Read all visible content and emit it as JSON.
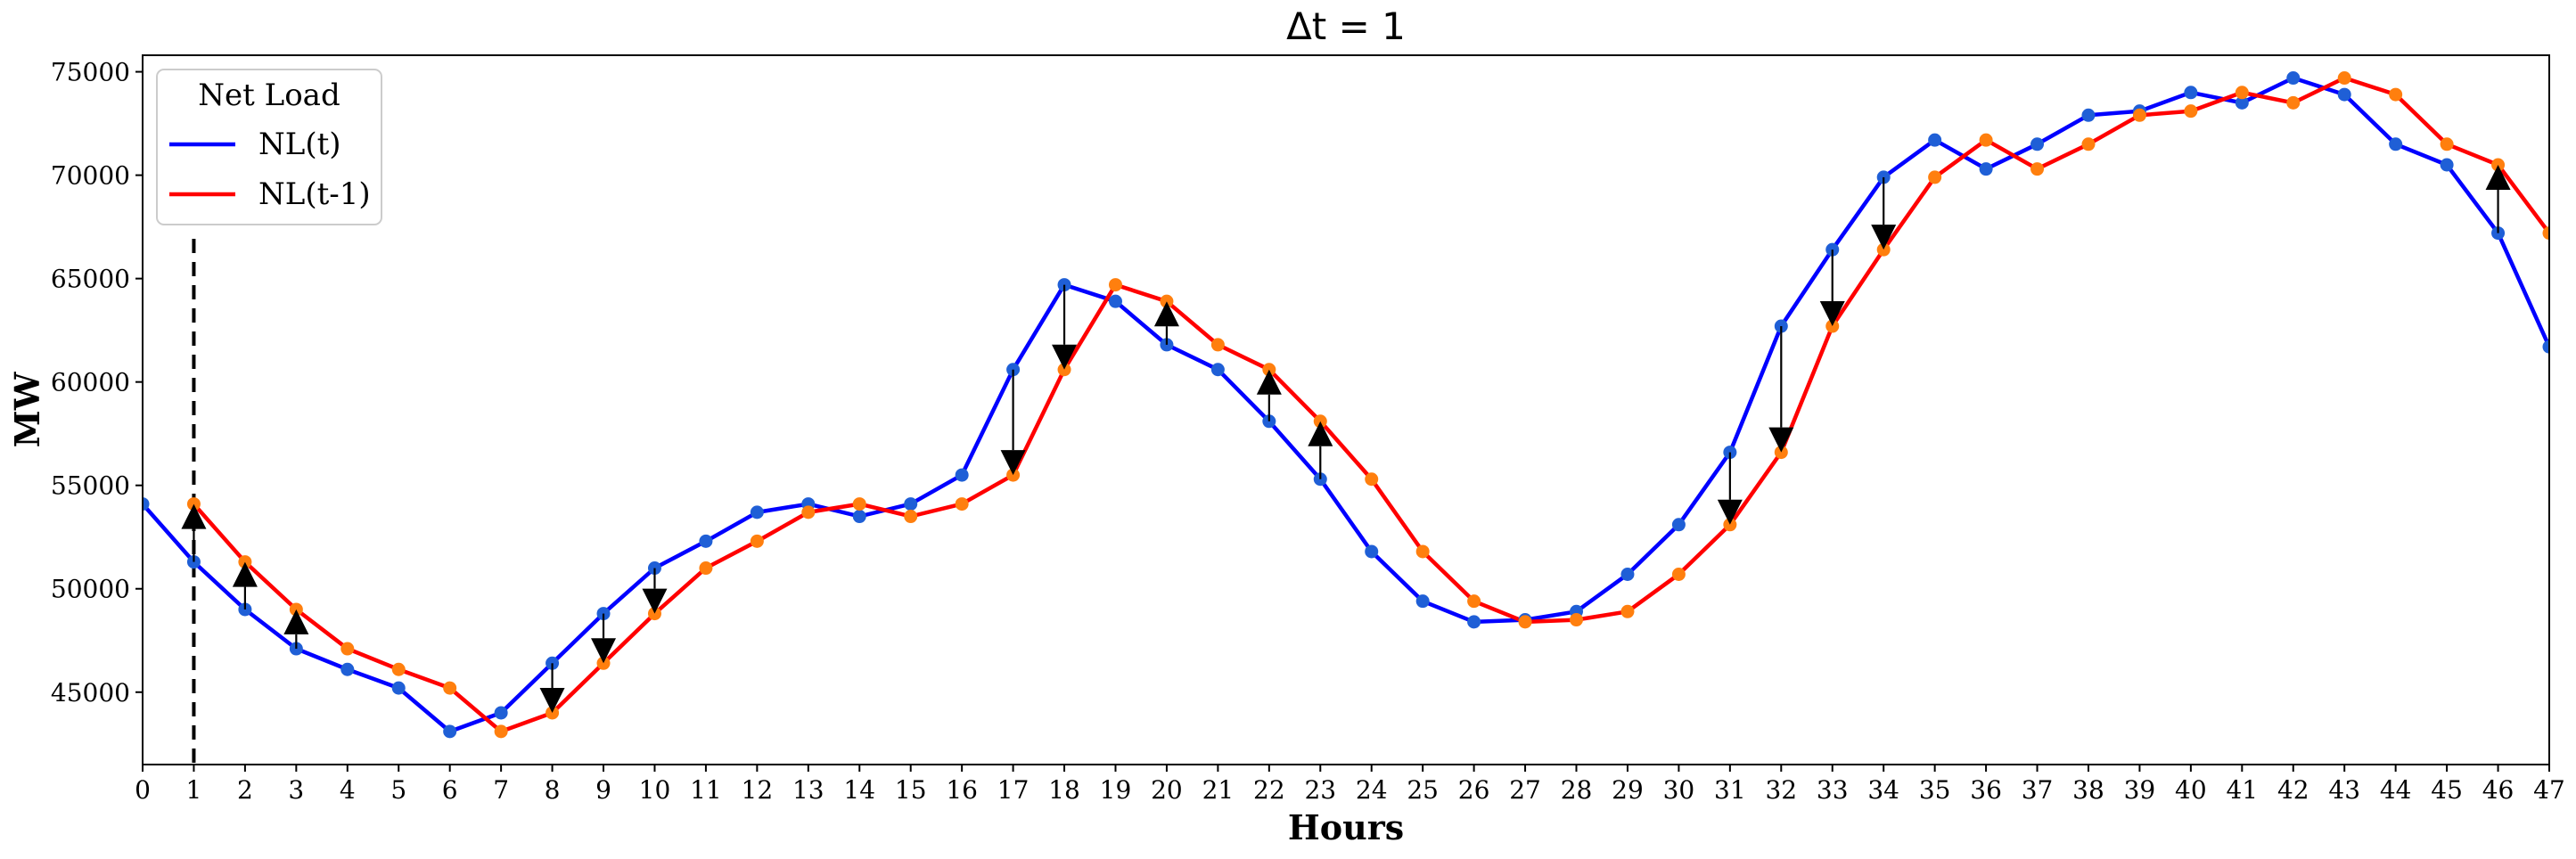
{
  "chart_data": {
    "type": "line",
    "title": "Δt = 1",
    "xlabel": "Hours",
    "ylabel": "MW",
    "xlim": [
      0,
      47
    ],
    "ylim": [
      41500,
      75800
    ],
    "x_ticks": [
      0,
      1,
      2,
      3,
      4,
      5,
      6,
      7,
      8,
      9,
      10,
      11,
      12,
      13,
      14,
      15,
      16,
      17,
      18,
      19,
      20,
      21,
      22,
      23,
      24,
      25,
      26,
      27,
      28,
      29,
      30,
      31,
      32,
      33,
      34,
      35,
      36,
      37,
      38,
      39,
      40,
      41,
      42,
      43,
      44,
      45,
      46,
      47
    ],
    "y_ticks": [
      45000,
      50000,
      55000,
      60000,
      65000,
      70000,
      75000
    ],
    "grid": false,
    "legend": {
      "title": "Net Load",
      "position": "top-left"
    },
    "series": [
      {
        "name": "NL(t)",
        "color": "#0000ff",
        "marker_color": "#1f5fd6",
        "x": [
          0,
          1,
          2,
          3,
          4,
          5,
          6,
          7,
          8,
          9,
          10,
          11,
          12,
          13,
          14,
          15,
          16,
          17,
          18,
          19,
          20,
          21,
          22,
          23,
          24,
          25,
          26,
          27,
          28,
          29,
          30,
          31,
          32,
          33,
          34,
          35,
          36,
          37,
          38,
          39,
          40,
          41,
          42,
          43,
          44,
          45,
          46,
          47
        ],
        "values": [
          54100,
          51300,
          49000,
          47100,
          46100,
          45200,
          43100,
          44000,
          46400,
          48800,
          51000,
          52300,
          53700,
          54100,
          53500,
          54100,
          55500,
          60600,
          64700,
          63900,
          61800,
          60600,
          58100,
          55300,
          51800,
          49400,
          48400,
          48500,
          48900,
          50700,
          53100,
          56600,
          62700,
          66400,
          69900,
          71700,
          70300,
          71500,
          72900,
          73100,
          74000,
          73500,
          74700,
          73900,
          71500,
          70500,
          67200,
          61700
        ]
      },
      {
        "name": "NL(t-1)",
        "color": "#ff0000",
        "marker_color": "#ff7f0e",
        "x": [
          1,
          2,
          3,
          4,
          5,
          6,
          7,
          8,
          9,
          10,
          11,
          12,
          13,
          14,
          15,
          16,
          17,
          18,
          19,
          20,
          21,
          22,
          23,
          24,
          25,
          26,
          27,
          28,
          29,
          30,
          31,
          32,
          33,
          34,
          35,
          36,
          37,
          38,
          39,
          40,
          41,
          42,
          43,
          44,
          45,
          46,
          47
        ],
        "values": [
          54100,
          51300,
          49000,
          47100,
          46100,
          45200,
          43100,
          44000,
          46400,
          48800,
          51000,
          52300,
          53700,
          54100,
          53500,
          54100,
          55500,
          60600,
          64700,
          63900,
          61800,
          60600,
          58100,
          55300,
          51800,
          49400,
          48400,
          48500,
          48900,
          50700,
          53100,
          56600,
          62700,
          66400,
          69900,
          71700,
          70300,
          71500,
          72900,
          73100,
          74000,
          73500,
          74700,
          73900,
          71500,
          70500,
          67200
        ]
      }
    ],
    "arrow_hours": [
      1,
      2,
      3,
      8,
      9,
      10,
      17,
      18,
      20,
      22,
      23,
      31,
      32,
      33,
      34,
      46
    ],
    "vline_x": 1
  }
}
